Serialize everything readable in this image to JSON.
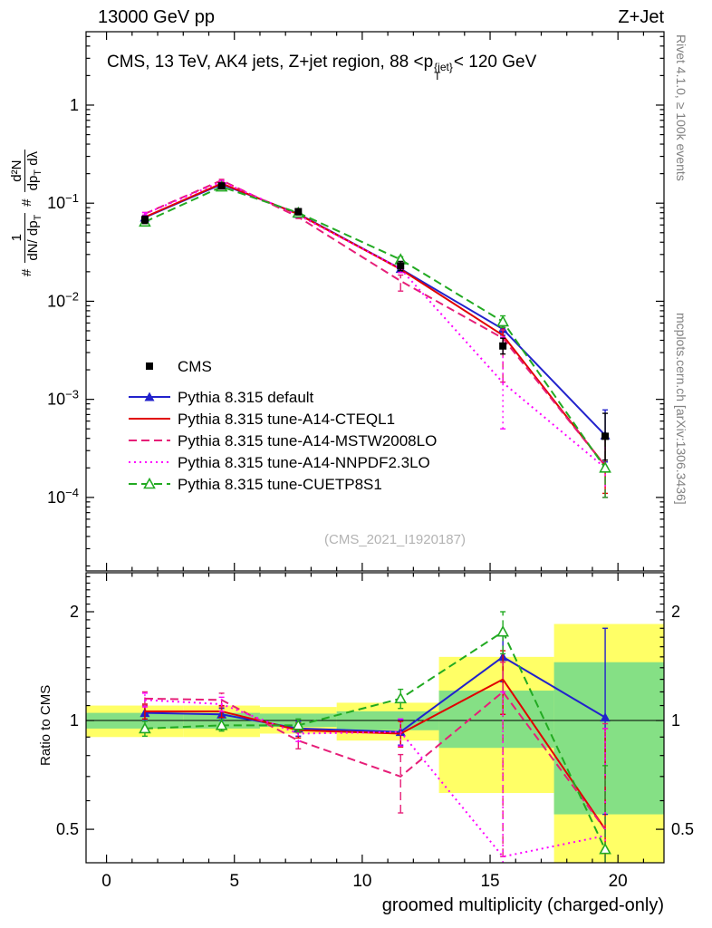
{
  "header": {
    "left": "13000 GeV pp",
    "right": "Z+Jet"
  },
  "side_notes": {
    "top_right": "Rivet 4.1.0, ≥ 100k events",
    "bottom_right": "mcplots.cern.ch [arXiv:1306.3436]"
  },
  "watermark": "(CMS_2021_I1920187)",
  "chart_data": {
    "type": "line",
    "title": {
      "pre": "CMS, 13 TeV, AK4 jets, Z+jet region, 88 <p",
      "sup": "{jet}",
      "sub": "T",
      "post": "< 120 GeV"
    },
    "xlabel": "groomed multiplicity (charged-only)",
    "x_range": [
      -0.8,
      21.8
    ],
    "x_major_ticks": [
      0,
      5,
      10,
      15,
      20
    ],
    "x": [
      1.5,
      4.5,
      7.5,
      11.5,
      15.5,
      19.5
    ],
    "main_panel": {
      "yscale": "log",
      "y_range": [
        1.78e-05,
        5.6
      ],
      "y_major_ticks": [
        1,
        0.1,
        0.01,
        0.001,
        0.0001
      ],
      "ylabel_parts": {
        "hash1": "#",
        "frac1_num": "1",
        "frac1_den_main": "dN/ dp",
        "frac1_den_sub": "T",
        "hash2": "#",
        "frac2_num": "d²N",
        "frac2_den_a": "dp",
        "frac2_den_sub": "T",
        "frac2_den_b": " dλ"
      },
      "series": [
        {
          "name": "CMS",
          "color": "#000000",
          "marker": "square",
          "line": "none",
          "values": [
            0.068,
            0.15,
            0.082,
            0.023,
            0.0035,
            0.00042
          ],
          "err_lo": [
            0.062,
            0.142,
            0.076,
            0.0205,
            0.0029,
            0.00024
          ],
          "err_hi": [
            0.074,
            0.158,
            0.088,
            0.0255,
            0.0042,
            0.00072
          ]
        },
        {
          "name": "Pythia 8.315 default",
          "color": "#2222cc",
          "marker": "triangle",
          "line": "solid",
          "values": [
            0.0715,
            0.156,
            0.078,
            0.0214,
            0.0052,
            0.00043
          ],
          "err_lo": [
            0.069,
            0.152,
            0.0755,
            0.0198,
            0.0045,
            0.00023
          ],
          "err_hi": [
            0.074,
            0.16,
            0.0805,
            0.023,
            0.0059,
            0.00078
          ]
        },
        {
          "name": "Pythia 8.315 tune-A14-CTEQL1",
          "color": "#e10000",
          "marker": "none",
          "line": "solid",
          "values": [
            0.0722,
            0.159,
            0.0772,
            0.0212,
            0.0045,
            0.00021
          ],
          "err_lo": [
            0.07,
            0.155,
            0.0747,
            0.0196,
            0.0037,
            0.00011
          ],
          "err_hi": [
            0.0745,
            0.163,
            0.0797,
            0.0228,
            0.0054,
            0.0004
          ]
        },
        {
          "name": "Pythia 8.315 tune-A14-MSTW2008LO",
          "color": "#e61e78",
          "marker": "none",
          "line": "dashed",
          "values": [
            0.078,
            0.171,
            0.0722,
            0.0161,
            0.0042,
            0.00021
          ],
          "err_lo": [
            0.0755,
            0.167,
            0.0697,
            0.0127,
            0.0015,
            0.0001
          ],
          "err_hi": [
            0.0805,
            0.175,
            0.0747,
            0.0185,
            0.0051,
            0.00042
          ]
        },
        {
          "name": "Pythia 8.315 tune-A14-NNPDF2.3LO",
          "color": "#ff00ff",
          "marker": "none",
          "line": "dotted",
          "values": [
            0.0777,
            0.166,
            0.0756,
            0.0214,
            0.00148,
            0.0002
          ],
          "err_lo": [
            0.0752,
            0.162,
            0.0731,
            0.0196,
            0.0005,
            0.0001
          ],
          "err_hi": [
            0.0802,
            0.17,
            0.0781,
            0.0232,
            0.0043,
            0.0004
          ]
        },
        {
          "name": "Pythia 8.315 tune-CUETP8S1",
          "color": "#22aa22",
          "marker": "triangle-open",
          "line": "dashed",
          "values": [
            0.0645,
            0.147,
            0.0797,
            0.0266,
            0.0062,
            0.0002
          ],
          "err_lo": [
            0.062,
            0.143,
            0.0772,
            0.0248,
            0.0054,
            0.0001
          ],
          "err_hi": [
            0.067,
            0.151,
            0.0822,
            0.0284,
            0.0071,
            0.00042
          ]
        }
      ]
    },
    "ratio_panel": {
      "ylabel": "Ratio to CMS",
      "yscale": "log",
      "y_range": [
        0.404,
        2.564
      ],
      "y_major_ticks": [
        0.5,
        1,
        2
      ],
      "reference_line": 1,
      "bands": [
        {
          "name": "uncertainty-band-outer",
          "color": "#ffff66",
          "segments": [
            [
              -0.8,
              3,
              0.9,
              1.1
            ],
            [
              3,
              6,
              0.9,
              1.1
            ],
            [
              6,
              9,
              0.92,
              1.09
            ],
            [
              9,
              13,
              0.88,
              1.12
            ],
            [
              13,
              17.5,
              0.63,
              1.5
            ],
            [
              17.5,
              21.8,
              0.37,
              1.85
            ]
          ]
        },
        {
          "name": "uncertainty-band-inner",
          "color": "#85e085",
          "segments": [
            [
              -0.8,
              3,
              0.95,
              1.05
            ],
            [
              3,
              6,
              0.95,
              1.05
            ],
            [
              6,
              9,
              0.96,
              1.045
            ],
            [
              9,
              13,
              0.94,
              1.06
            ],
            [
              13,
              17.5,
              0.84,
              1.21
            ],
            [
              17.5,
              21.8,
              0.55,
              1.45
            ]
          ]
        }
      ],
      "series": [
        {
          "name": "Pythia 8.315 default",
          "color": "#2222cc",
          "marker": "triangle",
          "line": "solid",
          "values": [
            1.05,
            1.04,
            0.95,
            0.93,
            1.5,
            1.02
          ],
          "err_lo": [
            1.0,
            1.0,
            0.905,
            0.855,
            1.28,
            0.55
          ],
          "err_hi": [
            1.1,
            1.08,
            0.995,
            1.005,
            1.72,
            1.8
          ]
        },
        {
          "name": "Pythia 8.315 tune-A14-CTEQL1",
          "color": "#e10000",
          "marker": "none",
          "line": "solid",
          "values": [
            1.06,
            1.06,
            0.94,
            0.92,
            1.3,
            0.5
          ],
          "err_lo": [
            1.01,
            1.02,
            0.895,
            0.845,
            1.04,
            0.27
          ],
          "err_hi": [
            1.11,
            1.1,
            0.985,
            0.995,
            1.56,
            0.95
          ]
        },
        {
          "name": "Pythia 8.315 tune-A14-MSTW2008LO",
          "color": "#e61e78",
          "marker": "none",
          "line": "dashed",
          "values": [
            1.15,
            1.14,
            0.88,
            0.7,
            1.2,
            0.5
          ],
          "err_lo": [
            1.1,
            1.09,
            0.835,
            0.555,
            0.42,
            0.25
          ],
          "err_hi": [
            1.2,
            1.19,
            0.925,
            0.805,
            1.45,
            0.98
          ]
        },
        {
          "name": "Pythia 8.315 tune-A14-NNPDF2.3LO",
          "color": "#ff00ff",
          "marker": "none",
          "line": "dotted",
          "values": [
            1.14,
            1.11,
            0.92,
            0.93,
            0.42,
            0.48
          ],
          "err_lo": [
            1.09,
            1.06,
            0.875,
            0.85,
            0.15,
            0.2
          ],
          "err_hi": [
            1.19,
            1.16,
            0.965,
            1.01,
            1.2,
            0.95
          ]
        },
        {
          "name": "Pythia 8.315 tune-CUETP8S1",
          "color": "#22aa22",
          "marker": "triangle-open",
          "line": "dashed",
          "values": [
            0.95,
            0.97,
            0.97,
            1.15,
            1.76,
            0.44
          ],
          "err_lo": [
            0.905,
            0.935,
            0.93,
            1.08,
            1.53,
            0.25
          ],
          "err_hi": [
            0.995,
            1.005,
            1.01,
            1.22,
            2.0,
            0.75
          ]
        }
      ]
    },
    "legend": {
      "position": "middle-left"
    }
  }
}
